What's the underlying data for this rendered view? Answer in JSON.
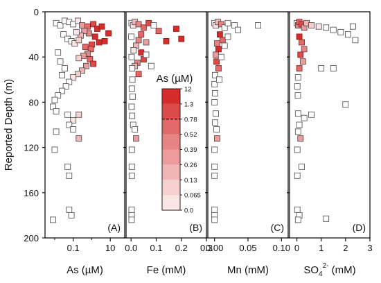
{
  "chart_data": {
    "type": "scatter",
    "ylabel": "Reported Depth (m)",
    "ylim": [
      0,
      200
    ],
    "y_ticks": [
      "0",
      "40",
      "80",
      "120",
      "160",
      "200"
    ],
    "y_inverted": true,
    "grid": false,
    "point_style": {
      "marker": "open square",
      "stroke": "#444444"
    },
    "panels": [
      {
        "letter": "(A)",
        "xlabel": "As (µM)",
        "x_scale": "log",
        "xlim": [
          0.003,
          60
        ],
        "x_ticks": [
          {
            "v": 0.1,
            "label": "0.1"
          },
          {
            "v": 10,
            "label": "10"
          }
        ],
        "points": [
          {
            "x": 0.012,
            "y": 10,
            "c": 0
          },
          {
            "x": 0.02,
            "y": 12,
            "c": 0
          },
          {
            "x": 0.035,
            "y": 8,
            "c": 0
          },
          {
            "x": 0.06,
            "y": 9,
            "c": 0
          },
          {
            "x": 0.1,
            "y": 11,
            "c": 0
          },
          {
            "x": 0.18,
            "y": 8,
            "c": 1
          },
          {
            "x": 0.3,
            "y": 12,
            "c": 4
          },
          {
            "x": 0.6,
            "y": 13,
            "c": 6
          },
          {
            "x": 1.2,
            "y": 11,
            "c": 7
          },
          {
            "x": 2.0,
            "y": 15,
            "c": 8
          },
          {
            "x": 3.5,
            "y": 13,
            "c": 8
          },
          {
            "x": 8.0,
            "y": 19,
            "c": 8
          },
          {
            "x": 1.5,
            "y": 22,
            "c": 8
          },
          {
            "x": 2.5,
            "y": 27,
            "c": 8
          },
          {
            "x": 5.0,
            "y": 26,
            "c": 8
          },
          {
            "x": 1.0,
            "y": 29,
            "c": 7
          },
          {
            "x": 0.7,
            "y": 19,
            "c": 5
          },
          {
            "x": 0.4,
            "y": 17,
            "c": 4
          },
          {
            "x": 0.25,
            "y": 21,
            "c": 3
          },
          {
            "x": 0.15,
            "y": 18,
            "c": 1
          },
          {
            "x": 0.03,
            "y": 20,
            "c": 0
          },
          {
            "x": 0.05,
            "y": 24,
            "c": 0
          },
          {
            "x": 0.08,
            "y": 26,
            "c": 0
          },
          {
            "x": 0.12,
            "y": 28,
            "c": 1
          },
          {
            "x": 0.2,
            "y": 25,
            "c": 2
          },
          {
            "x": 0.45,
            "y": 31,
            "c": 6
          },
          {
            "x": 0.9,
            "y": 33,
            "c": 6
          },
          {
            "x": 0.6,
            "y": 37,
            "c": 5
          },
          {
            "x": 0.35,
            "y": 39,
            "c": 4
          },
          {
            "x": 0.2,
            "y": 41,
            "c": 2
          },
          {
            "x": 0.8,
            "y": 42,
            "c": 6
          },
          {
            "x": 1.2,
            "y": 46,
            "c": 7
          },
          {
            "x": 0.5,
            "y": 48,
            "c": 4
          },
          {
            "x": 0.3,
            "y": 52,
            "c": 3
          },
          {
            "x": 0.18,
            "y": 55,
            "c": 2
          },
          {
            "x": 0.1,
            "y": 58,
            "c": 1
          },
          {
            "x": 0.06,
            "y": 62,
            "c": 0
          },
          {
            "x": 0.04,
            "y": 66,
            "c": 0
          },
          {
            "x": 0.025,
            "y": 70,
            "c": 0
          },
          {
            "x": 0.015,
            "y": 74,
            "c": 0
          },
          {
            "x": 0.01,
            "y": 78,
            "c": 0
          },
          {
            "x": 0.008,
            "y": 84,
            "c": 0
          },
          {
            "x": 0.012,
            "y": 88,
            "c": 0
          },
          {
            "x": 0.05,
            "y": 91,
            "c": 0
          },
          {
            "x": 0.1,
            "y": 96,
            "c": 1
          },
          {
            "x": 0.2,
            "y": 91,
            "c": 2
          },
          {
            "x": 0.06,
            "y": 100,
            "c": 0
          },
          {
            "x": 0.1,
            "y": 104,
            "c": 0
          },
          {
            "x": 0.012,
            "y": 106,
            "c": 0
          },
          {
            "x": 0.2,
            "y": 112,
            "c": 3
          },
          {
            "x": 0.01,
            "y": 122,
            "c": 0
          },
          {
            "x": 0.05,
            "y": 137,
            "c": 0
          },
          {
            "x": 0.06,
            "y": 145,
            "c": 0
          },
          {
            "x": 0.06,
            "y": 175,
            "c": 0
          },
          {
            "x": 0.08,
            "y": 180,
            "c": 0
          },
          {
            "x": 0.008,
            "y": 184,
            "c": 0
          },
          {
            "x": 0.015,
            "y": 36,
            "c": 0
          },
          {
            "x": 0.02,
            "y": 44,
            "c": 0
          },
          {
            "x": 0.035,
            "y": 50,
            "c": 0
          },
          {
            "x": 0.025,
            "y": 56,
            "c": 0
          }
        ]
      },
      {
        "letter": "(B)",
        "xlabel": "Fe (mM)",
        "x_scale": "linear",
        "xlim": [
          -0.02,
          0.3
        ],
        "x_ticks": [
          {
            "v": 0.0,
            "label": "0.0"
          },
          {
            "v": 0.1,
            "label": "0.1"
          },
          {
            "v": 0.2,
            "label": "0.2"
          },
          {
            "v": 0.3,
            "label": "0.3"
          }
        ],
        "points": [
          {
            "x": 0.002,
            "y": 10,
            "c": 0
          },
          {
            "x": 0.008,
            "y": 12,
            "c": 1
          },
          {
            "x": 0.015,
            "y": 9,
            "c": 3
          },
          {
            "x": 0.03,
            "y": 11,
            "c": 5
          },
          {
            "x": 0.05,
            "y": 14,
            "c": 6
          },
          {
            "x": 0.07,
            "y": 10,
            "c": 7
          },
          {
            "x": 0.09,
            "y": 12,
            "c": 0
          },
          {
            "x": 0.11,
            "y": 17,
            "c": 6
          },
          {
            "x": 0.14,
            "y": 26,
            "c": 8
          },
          {
            "x": 0.18,
            "y": 15,
            "c": 8
          },
          {
            "x": 0.2,
            "y": 24,
            "c": 8
          },
          {
            "x": 0.04,
            "y": 20,
            "c": 6
          },
          {
            "x": 0.03,
            "y": 25,
            "c": 5
          },
          {
            "x": 0.06,
            "y": 27,
            "c": 4
          },
          {
            "x": 0.02,
            "y": 30,
            "c": 3
          },
          {
            "x": 0.01,
            "y": 34,
            "c": 1
          },
          {
            "x": 0.04,
            "y": 36,
            "c": 8
          },
          {
            "x": 0.05,
            "y": 42,
            "c": 7
          },
          {
            "x": 0.025,
            "y": 45,
            "c": 5
          },
          {
            "x": 0.015,
            "y": 48,
            "c": 3
          },
          {
            "x": 0.03,
            "y": 55,
            "c": 6
          },
          {
            "x": 0.005,
            "y": 60,
            "c": 0
          },
          {
            "x": 0.003,
            "y": 68,
            "c": 0
          },
          {
            "x": 0.006,
            "y": 75,
            "c": 0
          },
          {
            "x": 0.002,
            "y": 84,
            "c": 0
          },
          {
            "x": 0.004,
            "y": 92,
            "c": 0
          },
          {
            "x": 0.008,
            "y": 100,
            "c": 0
          },
          {
            "x": 0.015,
            "y": 104,
            "c": 0
          },
          {
            "x": 0.02,
            "y": 112,
            "c": 4
          },
          {
            "x": 0.003,
            "y": 122,
            "c": 0
          },
          {
            "x": 0.003,
            "y": 137,
            "c": 0
          },
          {
            "x": 0.003,
            "y": 145,
            "c": 0
          },
          {
            "x": 0.002,
            "y": 175,
            "c": 0
          },
          {
            "x": 0.002,
            "y": 180,
            "c": 0
          },
          {
            "x": 0.002,
            "y": 184,
            "c": 0
          },
          {
            "x": 0.08,
            "y": 48,
            "c": 0
          },
          {
            "x": 0.06,
            "y": 38,
            "c": 0
          },
          {
            "x": 0.001,
            "y": 22,
            "c": 0
          },
          {
            "x": 0.002,
            "y": 40,
            "c": 0
          },
          {
            "x": 0.004,
            "y": 50,
            "c": 0
          }
        ]
      },
      {
        "letter": "(C)",
        "xlabel": "Mn (mM)",
        "x_scale": "linear",
        "xlim": [
          -0.01,
          0.11
        ],
        "x_ticks": [
          {
            "v": 0.0,
            "label": "0.00"
          },
          {
            "v": 0.05,
            "label": "0.05"
          },
          {
            "v": 0.1,
            "label": "0.10"
          }
        ],
        "points": [
          {
            "x": 0.0,
            "y": 10,
            "c": 0
          },
          {
            "x": 0.002,
            "y": 12,
            "c": 1
          },
          {
            "x": 0.005,
            "y": 9,
            "c": 3
          },
          {
            "x": 0.01,
            "y": 11,
            "c": 5
          },
          {
            "x": 0.015,
            "y": 14,
            "c": 0
          },
          {
            "x": 0.02,
            "y": 10,
            "c": 0
          },
          {
            "x": 0.03,
            "y": 12,
            "c": 0
          },
          {
            "x": 0.035,
            "y": 16,
            "c": 0
          },
          {
            "x": 0.065,
            "y": 12,
            "c": 0
          },
          {
            "x": 0.008,
            "y": 20,
            "c": 8
          },
          {
            "x": 0.012,
            "y": 25,
            "c": 6
          },
          {
            "x": 0.004,
            "y": 28,
            "c": 5
          },
          {
            "x": 0.006,
            "y": 33,
            "c": 8
          },
          {
            "x": 0.002,
            "y": 38,
            "c": 4
          },
          {
            "x": 0.003,
            "y": 44,
            "c": 7
          },
          {
            "x": 0.006,
            "y": 50,
            "c": 6
          },
          {
            "x": 0.001,
            "y": 56,
            "c": 0
          },
          {
            "x": 0.0,
            "y": 64,
            "c": 0
          },
          {
            "x": 0.001,
            "y": 72,
            "c": 0
          },
          {
            "x": 0.0,
            "y": 80,
            "c": 0
          },
          {
            "x": 0.002,
            "y": 90,
            "c": 0
          },
          {
            "x": 0.001,
            "y": 98,
            "c": 0
          },
          {
            "x": 0.003,
            "y": 104,
            "c": 0
          },
          {
            "x": 0.004,
            "y": 112,
            "c": 4
          },
          {
            "x": 0.0,
            "y": 122,
            "c": 0
          },
          {
            "x": 0.0,
            "y": 137,
            "c": 0
          },
          {
            "x": 0.0,
            "y": 145,
            "c": 0
          },
          {
            "x": 0.0,
            "y": 175,
            "c": 0
          },
          {
            "x": 0.0,
            "y": 180,
            "c": 0
          },
          {
            "x": 0.0,
            "y": 184,
            "c": 0
          },
          {
            "x": 0.02,
            "y": 22,
            "c": 0
          },
          {
            "x": 0.01,
            "y": 40,
            "c": 0
          },
          {
            "x": 0.007,
            "y": 60,
            "c": 0
          },
          {
            "x": 0.015,
            "y": 30,
            "c": 0
          }
        ]
      },
      {
        "letter": "(D)",
        "xlabel": "SO4 2- (mM)",
        "xlabel_main": "SO",
        "xlabel_sub": "4",
        "xlabel_sup": "2-",
        "xlabel_unit": " (mM)",
        "x_scale": "linear",
        "xlim": [
          -0.3,
          3.0
        ],
        "x_ticks": [
          {
            "v": 0,
            "label": "0"
          },
          {
            "v": 1,
            "label": "1"
          },
          {
            "v": 2,
            "label": "2"
          },
          {
            "v": 3,
            "label": "3"
          }
        ],
        "points": [
          {
            "x": 0.0,
            "y": 10,
            "c": 0
          },
          {
            "x": 0.05,
            "y": 12,
            "c": 5
          },
          {
            "x": 0.1,
            "y": 9,
            "c": 6
          },
          {
            "x": 0.2,
            "y": 11,
            "c": 7
          },
          {
            "x": 0.3,
            "y": 14,
            "c": 4
          },
          {
            "x": 0.4,
            "y": 10,
            "c": 3
          },
          {
            "x": 0.6,
            "y": 12,
            "c": 2
          },
          {
            "x": 0.9,
            "y": 13,
            "c": 1
          },
          {
            "x": 1.2,
            "y": 14,
            "c": 0
          },
          {
            "x": 1.5,
            "y": 16,
            "c": 0
          },
          {
            "x": 1.8,
            "y": 18,
            "c": 0
          },
          {
            "x": 2.1,
            "y": 20,
            "c": 0
          },
          {
            "x": 2.3,
            "y": 13,
            "c": 0
          },
          {
            "x": 2.4,
            "y": 25,
            "c": 0
          },
          {
            "x": 0.1,
            "y": 22,
            "c": 8
          },
          {
            "x": 0.2,
            "y": 27,
            "c": 6
          },
          {
            "x": 0.3,
            "y": 33,
            "c": 5
          },
          {
            "x": 0.15,
            "y": 38,
            "c": 7
          },
          {
            "x": 0.25,
            "y": 44,
            "c": 4
          },
          {
            "x": 0.1,
            "y": 50,
            "c": 6
          },
          {
            "x": 1.0,
            "y": 50,
            "c": 0
          },
          {
            "x": 1.5,
            "y": 50,
            "c": 0
          },
          {
            "x": 0.05,
            "y": 58,
            "c": 0
          },
          {
            "x": 0.02,
            "y": 66,
            "c": 0
          },
          {
            "x": 0.04,
            "y": 74,
            "c": 0
          },
          {
            "x": 2.0,
            "y": 82,
            "c": 0
          },
          {
            "x": 0.05,
            "y": 90,
            "c": 0
          },
          {
            "x": 0.6,
            "y": 91,
            "c": 0
          },
          {
            "x": 0.3,
            "y": 94,
            "c": 0
          },
          {
            "x": 0.1,
            "y": 100,
            "c": 0
          },
          {
            "x": 0.05,
            "y": 106,
            "c": 0
          },
          {
            "x": 0.15,
            "y": 112,
            "c": 4
          },
          {
            "x": 0.02,
            "y": 122,
            "c": 0
          },
          {
            "x": 0.2,
            "y": 137,
            "c": 0
          },
          {
            "x": 0.02,
            "y": 145,
            "c": 0
          },
          {
            "x": 0.02,
            "y": 175,
            "c": 0
          },
          {
            "x": 0.1,
            "y": 180,
            "c": 0
          },
          {
            "x": 0.05,
            "y": 184,
            "c": 0
          },
          {
            "x": 1.2,
            "y": 183,
            "c": 0
          }
        ]
      }
    ],
    "colorbar": {
      "title": "As (µM)",
      "bins": [
        {
          "label": "0.0",
          "color": "#ffffff"
        },
        {
          "label": "0.065",
          "color": "#fbe5e5"
        },
        {
          "label": "0.13",
          "color": "#f6cfcf"
        },
        {
          "label": "0.26",
          "color": "#f1b5b5"
        },
        {
          "label": "0.39",
          "color": "#ec9c9c"
        },
        {
          "label": "0.52",
          "color": "#e68383"
        },
        {
          "label": "0.78",
          "color": "#e06a6a"
        },
        {
          "label": "1.3",
          "color": "#da4a4a"
        },
        {
          "label": "12",
          "color": "#d42b2b"
        }
      ],
      "threshold_label": "0.78"
    }
  }
}
